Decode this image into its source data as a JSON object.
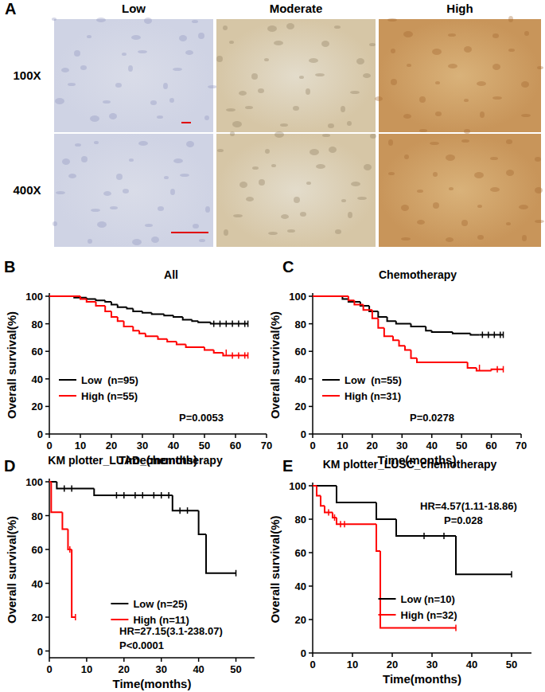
{
  "panel_a": {
    "label": "A",
    "columns": [
      "Low",
      "Moderate",
      "High"
    ],
    "rows": [
      "100X",
      "400X"
    ]
  },
  "chart_data": [
    {
      "type": "line",
      "line_style": "step",
      "panel_label": "B",
      "title": "All",
      "x_label": "Time(months)",
      "y_label": "Overall survival(%)",
      "xlim": [
        0,
        70
      ],
      "xticks": [
        0,
        10,
        20,
        30,
        40,
        50,
        60,
        70
      ],
      "ylim": [
        0,
        100
      ],
      "yticks": [
        0,
        20,
        40,
        60,
        80,
        100
      ],
      "legend": "lower left",
      "annotations": [
        "P=0.0053"
      ],
      "series": [
        {
          "name": "Low  (n=95)",
          "color": "#000000",
          "x": [
            0,
            8,
            12,
            15,
            18,
            20,
            22,
            25,
            27,
            30,
            33,
            37,
            40,
            43,
            46,
            48,
            52,
            64
          ],
          "values": [
            100,
            99,
            98,
            97,
            96,
            94,
            92,
            91,
            89,
            88,
            87,
            86,
            85,
            83,
            82,
            81,
            80,
            80
          ],
          "censor_x": [
            53,
            55,
            57,
            59,
            61,
            63,
            64
          ],
          "censor_values": [
            80,
            80,
            80,
            80,
            80,
            80,
            80
          ]
        },
        {
          "name": "High (n=55)",
          "color": "#ff0000",
          "x": [
            0,
            10,
            12,
            15,
            18,
            20,
            22,
            24,
            27,
            29,
            31,
            35,
            38,
            41,
            44,
            50,
            53,
            56,
            60,
            64
          ],
          "values": [
            100,
            98,
            96,
            93,
            89,
            85,
            82,
            78,
            75,
            73,
            71,
            69,
            67,
            65,
            63,
            61,
            59,
            57,
            57,
            57
          ],
          "censor_x": [
            57,
            59,
            61,
            63,
            64
          ],
          "censor_values": [
            59,
            57,
            57,
            57,
            57
          ]
        }
      ]
    },
    {
      "type": "line",
      "line_style": "step",
      "panel_label": "C",
      "title": "Chemotherapy",
      "x_label": "Time(months)",
      "y_label": "Overall survival(%)",
      "xlim": [
        0,
        70
      ],
      "xticks": [
        0,
        10,
        20,
        30,
        40,
        50,
        60,
        70
      ],
      "ylim": [
        0,
        100
      ],
      "yticks": [
        0,
        20,
        40,
        60,
        80,
        100
      ],
      "legend": "lower left",
      "annotations": [
        "P=0.0278"
      ],
      "series": [
        {
          "name": "Low  (n=55)",
          "color": "#000000",
          "x": [
            0,
            10,
            12,
            16,
            19,
            22,
            25,
            28,
            33,
            38,
            40,
            47,
            53,
            56,
            64
          ],
          "values": [
            100,
            98,
            96,
            93,
            89,
            85,
            82,
            80,
            78,
            75,
            74,
            73,
            72,
            72,
            72
          ],
          "censor_x": [
            57,
            59,
            61,
            63,
            64
          ],
          "censor_values": [
            72,
            72,
            72,
            72,
            72
          ]
        },
        {
          "name": "High (n=31)",
          "color": "#ff0000",
          "x": [
            0,
            12,
            14,
            17,
            20,
            22,
            24,
            27,
            29,
            31,
            33,
            35,
            52,
            55,
            60,
            64
          ],
          "values": [
            100,
            97,
            94,
            90,
            84,
            77,
            71,
            68,
            64,
            61,
            55,
            52,
            48,
            46,
            47,
            47
          ],
          "censor_x": [
            56,
            62,
            64
          ],
          "censor_values": [
            48,
            47,
            47
          ]
        }
      ]
    },
    {
      "type": "line",
      "line_style": "step",
      "panel_label": "D",
      "title": "KM plotter_LUAD_chemotherapy",
      "x_label": "Time(months)",
      "y_label": "Overall survival(%)",
      "xlim": [
        0,
        55
      ],
      "xticks": [
        0,
        10,
        20,
        30,
        40,
        50
      ],
      "ylim": [
        -4,
        100
      ],
      "yticks": [
        0,
        20,
        40,
        60,
        80,
        100
      ],
      "legend": "lower center",
      "annotations": [
        "HR=27.15(3.1-238.07)",
        "P<0.0001"
      ],
      "series": [
        {
          "name": "Low (n=25)",
          "color": "#000000",
          "x": [
            0,
            2,
            12,
            33,
            40,
            42,
            50
          ],
          "values": [
            100,
            96,
            92,
            83,
            69,
            46,
            46
          ],
          "censor_x": [
            4,
            6,
            18,
            20,
            23,
            25,
            28,
            30,
            32,
            35,
            37,
            50
          ],
          "censor_values": [
            96,
            96,
            92,
            92,
            92,
            92,
            92,
            92,
            92,
            83,
            83,
            46
          ]
        },
        {
          "name": "High (n=11)",
          "color": "#ff0000",
          "x": [
            0,
            0.5,
            3.5,
            5,
            6,
            7
          ],
          "values": [
            100,
            82,
            72,
            60,
            20,
            20
          ],
          "censor_x": [
            5.5,
            7
          ],
          "censor_values": [
            60,
            20
          ]
        }
      ]
    },
    {
      "type": "line",
      "line_style": "step",
      "panel_label": "E",
      "title": "KM plotter_LUSC_chemotherapy",
      "x_label": "Time(months)",
      "y_label": "Overall survival(%)",
      "xlim": [
        0,
        55
      ],
      "xticks": [
        0,
        10,
        20,
        30,
        40,
        50
      ],
      "ylim": [
        0,
        100
      ],
      "yticks": [
        0,
        20,
        40,
        60,
        80,
        100
      ],
      "legend": "lower center",
      "annotations": [
        "HR=4.57(1.11-18.86)",
        "P=0.028"
      ],
      "series": [
        {
          "name": "Low (n=10)",
          "color": "#000000",
          "x": [
            0,
            6,
            16,
            21,
            36,
            50
          ],
          "values": [
            100,
            90,
            80,
            70,
            47,
            47
          ],
          "censor_x": [
            28,
            33,
            50
          ],
          "censor_values": [
            70,
            70,
            47
          ]
        },
        {
          "name": "High (n=32)",
          "color": "#ff0000",
          "x": [
            0,
            1,
            2,
            3,
            5,
            6,
            16,
            17,
            36
          ],
          "values": [
            100,
            94,
            88,
            84,
            81,
            77,
            61,
            15,
            15
          ],
          "censor_x": [
            4,
            5.5,
            7,
            8,
            36
          ],
          "censor_values": [
            84,
            81,
            77,
            77,
            15
          ]
        }
      ]
    }
  ]
}
